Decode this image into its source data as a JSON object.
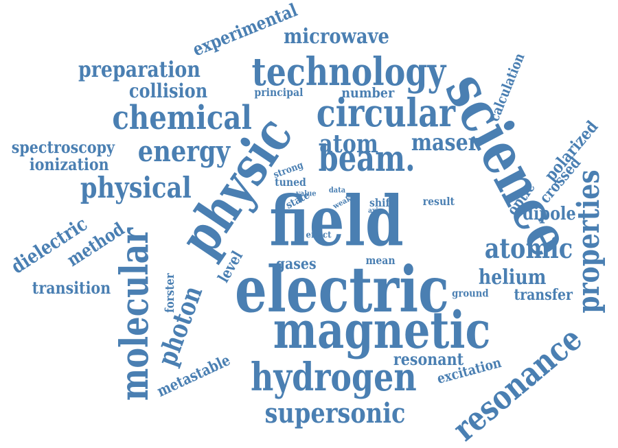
{
  "color": "#4a7fb2",
  "background": "#ffffff",
  "words": [
    {
      "text": "field",
      "orientation": "horizontal"
    },
    {
      "text": "electric",
      "orientation": "horizontal"
    },
    {
      "text": "magnetic",
      "orientation": "horizontal"
    },
    {
      "text": "science",
      "orientation": "rotated"
    },
    {
      "text": "physic",
      "orientation": "rotated"
    },
    {
      "text": "technology",
      "orientation": "horizontal"
    },
    {
      "text": "circular",
      "orientation": "horizontal"
    },
    {
      "text": "beam.",
      "orientation": "horizontal"
    },
    {
      "text": "chemical",
      "orientation": "horizontal"
    },
    {
      "text": "hydrogen",
      "orientation": "horizontal"
    },
    {
      "text": "molecular",
      "orientation": "vertical"
    },
    {
      "text": "resonance",
      "orientation": "rotated"
    },
    {
      "text": "properties",
      "orientation": "vertical"
    },
    {
      "text": "atomic",
      "orientation": "horizontal"
    },
    {
      "text": "energy",
      "orientation": "horizontal"
    },
    {
      "text": "physical",
      "orientation": "horizontal"
    },
    {
      "text": "atom",
      "orientation": "horizontal"
    },
    {
      "text": "maser",
      "orientation": "horizontal"
    },
    {
      "text": "supersonic",
      "orientation": "horizontal"
    },
    {
      "text": "photon",
      "orientation": "vertical"
    },
    {
      "text": "preparation",
      "orientation": "horizontal"
    },
    {
      "text": "microwave",
      "orientation": "horizontal"
    },
    {
      "text": "experimental",
      "orientation": "rotated"
    },
    {
      "text": "collision",
      "orientation": "horizontal"
    },
    {
      "text": "dielectric",
      "orientation": "rotated"
    },
    {
      "text": "method",
      "orientation": "rotated"
    },
    {
      "text": "transition",
      "orientation": "horizontal"
    },
    {
      "text": "spectroscopy",
      "orientation": "horizontal"
    },
    {
      "text": "ionization",
      "orientation": "horizontal"
    },
    {
      "text": "helium",
      "orientation": "horizontal"
    },
    {
      "text": "polarized",
      "orientation": "rotated"
    },
    {
      "text": "optic",
      "orientation": "rotated"
    },
    {
      "text": "crossed",
      "orientation": "rotated"
    },
    {
      "text": "dipole",
      "orientation": "horizontal"
    },
    {
      "text": "transfer",
      "orientation": "horizontal"
    },
    {
      "text": "resonant",
      "orientation": "horizontal"
    },
    {
      "text": "excitation",
      "orientation": "rotated"
    },
    {
      "text": "metastable",
      "orientation": "rotated"
    },
    {
      "text": "level",
      "orientation": "rotated"
    },
    {
      "text": "gases",
      "orientation": "horizontal"
    },
    {
      "text": "calculation",
      "orientation": "rotated"
    },
    {
      "text": "number",
      "orientation": "horizontal"
    },
    {
      "text": "principal",
      "orientation": "horizontal"
    },
    {
      "text": "forster",
      "orientation": "vertical"
    },
    {
      "text": "tuned",
      "orientation": "horizontal"
    },
    {
      "text": "strong",
      "orientation": "rotated"
    },
    {
      "text": "state",
      "orientation": "rotated"
    },
    {
      "text": "value",
      "orientation": "horizontal"
    },
    {
      "text": "data",
      "orientation": "horizontal"
    },
    {
      "text": "weak",
      "orientation": "rotated"
    },
    {
      "text": "shift",
      "orientation": "horizontal"
    },
    {
      "text": "axis",
      "orientation": "horizontal"
    },
    {
      "text": "result",
      "orientation": "horizontal"
    },
    {
      "text": "effect",
      "orientation": "horizontal"
    },
    {
      "text": "mean",
      "orientation": "horizontal"
    },
    {
      "text": "ground",
      "orientation": "horizontal"
    }
  ]
}
